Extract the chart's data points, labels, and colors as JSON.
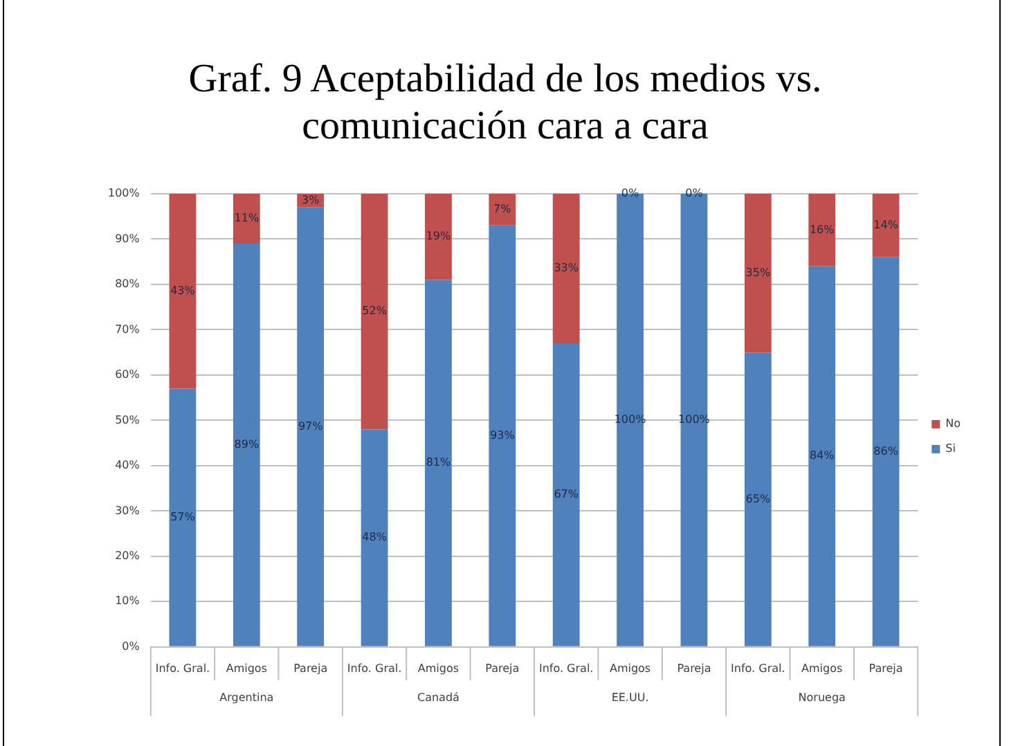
{
  "chart_data": {
    "type": "bar",
    "title": "Graf. 9  Aceptabilidad de los medios vs. comunicación cara a cara",
    "categories": [
      "Info. Gral.",
      "Amigos",
      "Pareja",
      "Info. Gral.",
      "Amigos",
      "Pareja",
      "Info. Gral.",
      "Amigos",
      "Pareja",
      "Info. Gral.",
      "Amigos",
      "Pareja"
    ],
    "series": [
      {
        "name": "Si",
        "color": "#4f81bd",
        "values": [
          57,
          89,
          97,
          48,
          81,
          93,
          67,
          100,
          100,
          65,
          84,
          86
        ],
        "value_labels": [
          "57%",
          "89%",
          "97%",
          "48%",
          "81%",
          "93%",
          "67%",
          "100%",
          "100%",
          "65%",
          "84%",
          "86%"
        ]
      },
      {
        "name": "No",
        "color": "#c0504d",
        "values": [
          43,
          11,
          3,
          52,
          19,
          7,
          33,
          0,
          0,
          35,
          16,
          14
        ],
        "value_labels": [
          "43%",
          "11%",
          "3%",
          "52%",
          "19%",
          "7%",
          "33%",
          "0%",
          "0%",
          "35%",
          "16%",
          "14%"
        ]
      }
    ],
    "stacked": true,
    "ylim": [
      0,
      100
    ],
    "yticks": [
      {
        "value": 0,
        "label": "0%"
      },
      {
        "value": 10,
        "label": "10%"
      },
      {
        "value": 20,
        "label": "20%"
      },
      {
        "value": 30,
        "label": "30%"
      },
      {
        "value": 40,
        "label": "40%"
      },
      {
        "value": 50,
        "label": "50%"
      },
      {
        "value": 60,
        "label": "60%"
      },
      {
        "value": 70,
        "label": "70%"
      },
      {
        "value": 80,
        "label": "80%"
      },
      {
        "value": 90,
        "label": "90%"
      },
      {
        "value": 100,
        "label": "100%"
      }
    ],
    "grid": "y",
    "legend": "right",
    "annotations": [
      "Argentina",
      "Canadá",
      "EE.UU.",
      "Noruega"
    ]
  }
}
